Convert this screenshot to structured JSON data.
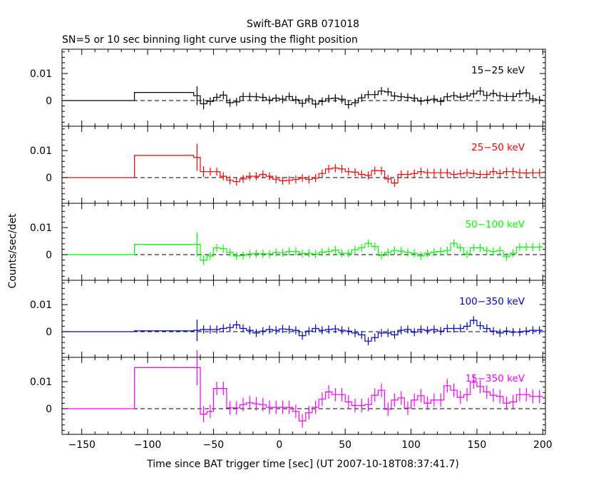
{
  "chart_data": {
    "type": "line",
    "title": "Swift-BAT GRB 071018",
    "subtitle": "SN=5 or 10 sec binning light curve using the flight position",
    "xlabel": "Time since BAT trigger time [sec] (UT 2007-10-18T08:37:41.7)",
    "ylabel": "Counts/sec/det",
    "xlim": [
      -165,
      202
    ],
    "xticks": [
      -150,
      -100,
      -50,
      0,
      50,
      100,
      150,
      200
    ],
    "xtick_labels": [
      "−150",
      "−100",
      "−50",
      "0",
      "50",
      "100",
      "150",
      "200"
    ],
    "ylim": [
      -0.0095,
      0.019
    ],
    "yticks": [
      0,
      0.01
    ],
    "ytick_labels": [
      "0",
      "0.01"
    ],
    "reference_line": 0,
    "grid": false,
    "bin_edges": [
      -165,
      -110,
      -65,
      -60,
      -55,
      -50,
      -45,
      -40,
      -35,
      -30,
      -25,
      -20,
      -15,
      -10,
      -5,
      0,
      5,
      10,
      15,
      20,
      25,
      30,
      35,
      40,
      45,
      50,
      55,
      60,
      65,
      70,
      75,
      80,
      85,
      90,
      95,
      100,
      105,
      110,
      115,
      120,
      125,
      130,
      135,
      140,
      145,
      150,
      155,
      160,
      165,
      170,
      175,
      180,
      185,
      190,
      195,
      200
    ],
    "series": [
      {
        "name": "15−25 keV",
        "color": "#000000",
        "values": [
          0,
          0.003,
          0.0018,
          -0.0012,
          -0.0003,
          0.0012,
          0.002,
          -0.0008,
          -0.0005,
          0.0015,
          0.0015,
          0.0014,
          0.0012,
          0.0002,
          0.0009,
          0.0005,
          0.0015,
          0.0003,
          -0.001,
          0.0006,
          -0.0013,
          -0.0003,
          0.0007,
          0.0009,
          0.0005,
          -0.0015,
          -0.0008,
          0.001,
          0.0022,
          0.0022,
          0.0035,
          0.0032,
          0.0017,
          0.0014,
          0.0012,
          0.0009,
          -0.0002,
          0.0002,
          0.0005,
          -0.0003,
          0.0014,
          0.0018,
          0.0013,
          0.0017,
          0.0025,
          0.0035,
          0.0019,
          0.0026,
          0.0018,
          0.0015,
          0.0015,
          0.0025,
          0.0028,
          0.0006,
          0.0002
        ],
        "errors": [
          0,
          0,
          0.0035,
          0.002,
          0.0015,
          0.0015,
          0.0015,
          0.0015,
          0.0015,
          0.0015,
          0.0015,
          0.0015,
          0.0015,
          0.0015,
          0.0015,
          0.0015,
          0.0015,
          0.0015,
          0.0015,
          0.0015,
          0.0015,
          0.0015,
          0.0015,
          0.0015,
          0.0015,
          0.0015,
          0.0015,
          0.0015,
          0.0015,
          0.0015,
          0.0015,
          0.0015,
          0.0015,
          0.0015,
          0.0015,
          0.0015,
          0.0015,
          0.0015,
          0.0015,
          0.0015,
          0.0015,
          0.0015,
          0.0015,
          0.0015,
          0.0015,
          0.0015,
          0.0015,
          0.0015,
          0.0015,
          0.0015,
          0.0015,
          0.0015,
          0.0015,
          0.0015,
          0.0015
        ]
      },
      {
        "name": "25−50 keV",
        "color": "#ff0000",
        "values": [
          0,
          0.0082,
          0.0075,
          0.0022,
          0.0022,
          0.0022,
          0.0005,
          -0.001,
          -0.0015,
          -0.0005,
          0.0005,
          0.0005,
          0.0012,
          0.0005,
          -0.0006,
          -0.0012,
          -0.001,
          -0.0007,
          -0.0002,
          -0.0007,
          -0.0002,
          0.0015,
          0.0032,
          0.0035,
          0.0032,
          0.0022,
          0.002,
          0.0012,
          0.0008,
          0.0026,
          0.0025,
          -0.0005,
          -0.002,
          0.0012,
          0.0012,
          0.0015,
          0.0022,
          0.0018,
          0.0018,
          0.0018,
          0.0018,
          0.0012,
          0.0014,
          0.0018,
          0.0015,
          0.0012,
          0.0012,
          0.0022,
          0.0015,
          0.0022,
          0.0022,
          0.0018,
          0.0017,
          0.0018,
          0.0018
        ],
        "errors": [
          0,
          0,
          0.005,
          0.002,
          0.0015,
          0.0015,
          0.0015,
          0.0015,
          0.0015,
          0.0015,
          0.0015,
          0.0015,
          0.0015,
          0.0015,
          0.0015,
          0.0015,
          0.0015,
          0.0015,
          0.0015,
          0.0015,
          0.0015,
          0.0015,
          0.0015,
          0.0015,
          0.0015,
          0.0015,
          0.0015,
          0.0015,
          0.0015,
          0.0015,
          0.0015,
          0.0015,
          0.0015,
          0.0015,
          0.0015,
          0.0015,
          0.0015,
          0.0015,
          0.0015,
          0.0015,
          0.0015,
          0.0015,
          0.0015,
          0.0015,
          0.0015,
          0.0015,
          0.0015,
          0.0015,
          0.0015,
          0.0015,
          0.0015,
          0.0015,
          0.0015,
          0.0015,
          0.0015
        ]
      },
      {
        "name": "50−100 keV",
        "color": "#00ff00",
        "values": [
          0,
          0.0038,
          0.0038,
          -0.002,
          -0.0005,
          0.0025,
          0.0022,
          0.0008,
          -0.0005,
          -0.0003,
          0.0002,
          0.0004,
          0.0003,
          0.0002,
          0.0008,
          0.0007,
          0.0012,
          0.0012,
          0.0004,
          0.0005,
          0.0002,
          0.0009,
          0.0012,
          0.0017,
          0.0005,
          0.0005,
          0.0018,
          0.0025,
          0.0042,
          0.003,
          -0.0003,
          0.0008,
          0.0015,
          0.0013,
          0.0008,
          0.0005,
          -0.0005,
          0.0005,
          0.0009,
          0.0012,
          0.0015,
          0.0042,
          0.0025,
          0.0002,
          0.0025,
          0.0025,
          0.0015,
          0.0012,
          0.0015,
          -0.0008,
          0.0005,
          0.0028,
          0.0028,
          0.0028,
          0.0028
        ],
        "errors": [
          0,
          0,
          0.0045,
          0.0018,
          0.0015,
          0.0015,
          0.0015,
          0.0015,
          0.0015,
          0.0015,
          0.0015,
          0.0015,
          0.0015,
          0.0015,
          0.0015,
          0.0015,
          0.0015,
          0.0015,
          0.0015,
          0.0015,
          0.0015,
          0.0015,
          0.0015,
          0.0015,
          0.0015,
          0.0015,
          0.0015,
          0.0015,
          0.0015,
          0.0015,
          0.0015,
          0.0015,
          0.0015,
          0.0015,
          0.0015,
          0.0015,
          0.0015,
          0.0015,
          0.0015,
          0.0015,
          0.0015,
          0.0015,
          0.0015,
          0.0015,
          0.0015,
          0.0015,
          0.0015,
          0.0015,
          0.0015,
          0.0015,
          0.0015,
          0.0015,
          0.0015,
          0.0015,
          0.0015
        ]
      },
      {
        "name": "100−350 keV",
        "color": "#0000cc",
        "values": [
          0,
          0.0003,
          0.0005,
          0.0008,
          0.0008,
          0.0008,
          0.0012,
          0.0015,
          0.0025,
          0.0012,
          0.0005,
          -0.0005,
          0.0002,
          0.0008,
          0.0005,
          0.001,
          0.0008,
          0.0005,
          -0.0015,
          0.0002,
          0.0012,
          0.0005,
          0.0008,
          0.001,
          0.0005,
          0.0002,
          -0.0005,
          -0.0012,
          -0.0035,
          -0.0022,
          -0.0005,
          -0.0005,
          -0.0012,
          0.0005,
          0.0008,
          -0.0002,
          0.0008,
          0.0005,
          0.0008,
          0.0002,
          0.0012,
          0.0012,
          0.0012,
          0.002,
          0.0042,
          0.0022,
          0.0012,
          0.0002,
          -0.0005,
          0.0002,
          -0.0002,
          -0.0002,
          0.0002,
          0.0005,
          0.0005
        ],
        "errors": [
          0,
          0,
          0.004,
          0.0015,
          0.0015,
          0.0015,
          0.0015,
          0.0015,
          0.0015,
          0.0015,
          0.0015,
          0.0015,
          0.0015,
          0.0015,
          0.0015,
          0.0015,
          0.0015,
          0.0015,
          0.0015,
          0.0015,
          0.0015,
          0.0015,
          0.0015,
          0.0015,
          0.0015,
          0.0015,
          0.0015,
          0.0015,
          0.0015,
          0.0015,
          0.0015,
          0.0015,
          0.0015,
          0.0015,
          0.0015,
          0.0015,
          0.0015,
          0.0015,
          0.0015,
          0.0015,
          0.0015,
          0.0015,
          0.0015,
          0.0015,
          0.0015,
          0.0015,
          0.0015,
          0.0015,
          0.0015,
          0.0015,
          0.0015,
          0.0015,
          0.0015,
          0.0015,
          0.0015
        ]
      },
      {
        "name": "15−350 keV",
        "color": "#ff00ff",
        "values": [
          0,
          0.0152,
          0.0152,
          -0.002,
          -0.001,
          0.0075,
          0.0075,
          0.0003,
          0.0003,
          0.0015,
          0.0022,
          0.0018,
          0.0015,
          0.0005,
          0.0005,
          0.0005,
          0.0005,
          -0.001,
          -0.0045,
          -0.0015,
          0.0005,
          0.0035,
          0.0062,
          0.0052,
          0.0052,
          0.0025,
          0.0012,
          0.0012,
          0.0015,
          0.005,
          0.0068,
          -0.0002,
          0.0032,
          0.004,
          0.0002,
          0.0032,
          0.0048,
          0.002,
          0.0032,
          0.0032,
          0.0085,
          0.0068,
          0.0042,
          0.0052,
          0.0098,
          0.0082,
          0.0062,
          0.005,
          0.0045,
          0.002,
          0.0025,
          0.0052,
          0.0052,
          0.0045,
          0.0045
        ],
        "errors": [
          0,
          0,
          0.0065,
          0.003,
          0.0025,
          0.0025,
          0.0025,
          0.0025,
          0.0025,
          0.0025,
          0.0025,
          0.0025,
          0.0025,
          0.0025,
          0.0025,
          0.0025,
          0.0025,
          0.0025,
          0.0025,
          0.0025,
          0.0025,
          0.0025,
          0.0025,
          0.0025,
          0.0025,
          0.0025,
          0.0025,
          0.0025,
          0.0025,
          0.0025,
          0.0025,
          0.0025,
          0.0025,
          0.0025,
          0.0025,
          0.0025,
          0.0025,
          0.0025,
          0.0025,
          0.0025,
          0.0025,
          0.0025,
          0.0025,
          0.0025,
          0.0025,
          0.0025,
          0.0025,
          0.0025,
          0.0025,
          0.0025,
          0.0025,
          0.0025,
          0.0025,
          0.0025,
          0.0025
        ]
      }
    ]
  }
}
